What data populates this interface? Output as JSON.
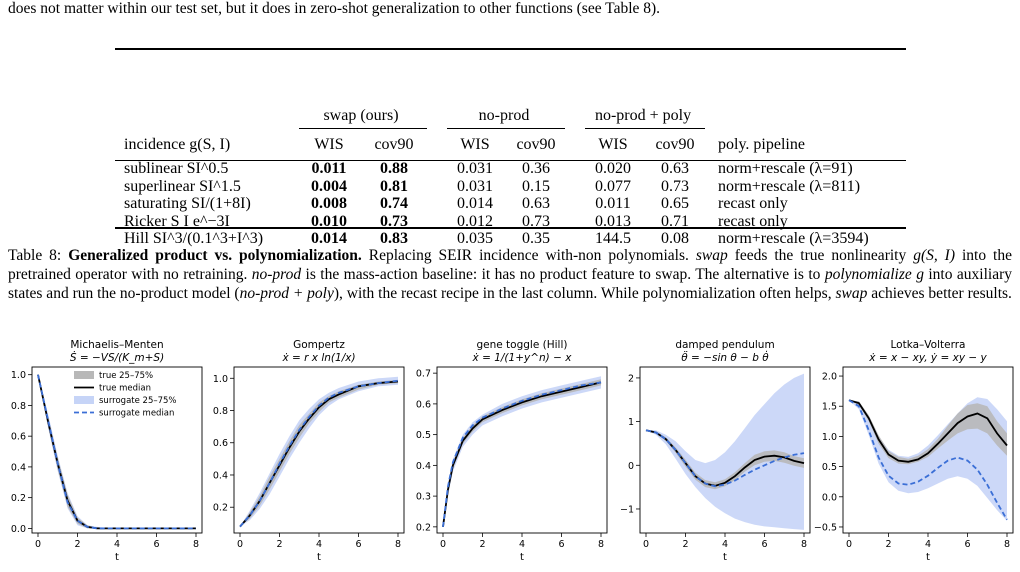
{
  "intro_text": "does not matter within our test set, but it does in zero-shot generalization to other functions (see Table 8).",
  "table": {
    "groups": [
      "swap (ours)",
      "no-prod",
      "no-prod + poly"
    ],
    "col_headers": [
      "incidence g(S, I)",
      "WIS",
      "cov90",
      "WIS",
      "cov90",
      "WIS",
      "cov90",
      "poly. pipeline"
    ],
    "rows": [
      {
        "label": "sublinear SI^0.5",
        "swap_wis": "0.011",
        "swap_cov": "0.88",
        "np_wis": "0.031",
        "np_cov": "0.36",
        "npp_wis": "0.020",
        "npp_cov": "0.63",
        "pipeline": "norm+rescale (λ=91)"
      },
      {
        "label": "superlinear SI^1.5",
        "swap_wis": "0.004",
        "swap_cov": "0.81",
        "np_wis": "0.031",
        "np_cov": "0.15",
        "npp_wis": "0.077",
        "npp_cov": "0.73",
        "pipeline": "norm+rescale (λ=811)"
      },
      {
        "label": "saturating SI/(1+8I)",
        "swap_wis": "0.008",
        "swap_cov": "0.74",
        "np_wis": "0.014",
        "np_cov": "0.63",
        "npp_wis": "0.011",
        "npp_cov": "0.65",
        "pipeline": "recast only"
      },
      {
        "label": "Ricker S I e^−3I",
        "swap_wis": "0.010",
        "swap_cov": "0.73",
        "np_wis": "0.012",
        "np_cov": "0.73",
        "npp_wis": "0.013",
        "npp_cov": "0.71",
        "pipeline": "recast only"
      },
      {
        "label": "Hill SI^3/(0.1^3+I^3)",
        "swap_wis": "0.014",
        "swap_cov": "0.83",
        "np_wis": "0.035",
        "np_cov": "0.35",
        "npp_wis": "144.5",
        "npp_cov": "0.08",
        "pipeline": "norm+rescale (λ=3594)"
      }
    ]
  },
  "caption": {
    "label": "Table 8:",
    "title": "Generalized product vs. polynomialization.",
    "s1": " Replacing SEIR incidence with-non polynomials. ",
    "swap": "swap",
    "s2": " feeds the true nonlinearity ",
    "g": "g(S, I)",
    "s3": " into the pretrained operator with no retraining. ",
    "noprod": "no-prod",
    "s4": " is the mass-action baseline: it has no product feature to swap. The alternative is to ",
    "polyize": "polynomialize g",
    "s5": " into auxiliary states and run the no-product model (",
    "noprodpoly": "no-prod + poly",
    "s6": "), with the recast recipe in the last column. While polynomialization often helps, ",
    "swap2": "swap",
    "s7": " achieves better results."
  },
  "legend": [
    "true 25–75%",
    "true median",
    "surrogate 25–75%",
    "surrogate median"
  ],
  "colors": {
    "true_band": "#b8b8b8",
    "true_median": "#000000",
    "surr_band": "#c6d4f7",
    "surr_median": "#3b6fd6"
  },
  "chart_data": [
    {
      "type": "line",
      "title": "Michaelis–Menten",
      "equation": "Ṡ = −VS/(K_m+S)",
      "xlabel": "t",
      "ylabel": "",
      "xlim": [
        0,
        8
      ],
      "ylim": [
        -0.03,
        1.05
      ],
      "xticks": [
        0,
        2,
        4,
        6,
        8
      ],
      "yticks": [
        0.0,
        0.2,
        0.4,
        0.6,
        0.8,
        1.0
      ],
      "ytick_labels": [
        "0.0",
        "0.2",
        "0.4",
        "0.6",
        "0.8",
        "1.0"
      ],
      "x": [
        0,
        0.5,
        1,
        1.5,
        2,
        2.5,
        3,
        4,
        5,
        6,
        7,
        8
      ],
      "series": [
        {
          "name": "true median",
          "values": [
            1.0,
            0.7,
            0.42,
            0.18,
            0.05,
            0.01,
            0.0,
            0.0,
            0.0,
            0.0,
            0.0,
            0.0
          ]
        },
        {
          "name": "surrogate median",
          "values": [
            1.0,
            0.71,
            0.42,
            0.17,
            0.05,
            0.01,
            0.0,
            0.0,
            0.0,
            0.0,
            0.0,
            0.0
          ]
        }
      ],
      "true_band": {
        "lo": [
          1.0,
          0.67,
          0.38,
          0.14,
          0.03,
          0.0,
          0.0,
          0.0,
          0.0,
          0.0,
          0.0,
          0.0
        ],
        "hi": [
          1.0,
          0.73,
          0.46,
          0.22,
          0.07,
          0.02,
          0.0,
          0.0,
          0.0,
          0.0,
          0.0,
          0.0
        ]
      },
      "surr_band": {
        "lo": [
          1.0,
          0.66,
          0.37,
          0.13,
          0.02,
          0.0,
          0.0,
          0.0,
          0.0,
          0.0,
          0.0,
          0.0
        ],
        "hi": [
          1.0,
          0.75,
          0.47,
          0.23,
          0.08,
          0.02,
          0.01,
          0.0,
          0.0,
          0.0,
          0.0,
          0.0
        ]
      },
      "legend": "upper right"
    },
    {
      "type": "line",
      "title": "Gompertz",
      "equation": "ẋ = r x ln(1/x)",
      "xlabel": "t",
      "ylabel": "",
      "xlim": [
        0,
        8
      ],
      "ylim": [
        0.04,
        1.07
      ],
      "xticks": [
        0,
        2,
        4,
        6,
        8
      ],
      "yticks": [
        0.2,
        0.4,
        0.6,
        0.8,
        1.0
      ],
      "ytick_labels": [
        "0.2",
        "0.4",
        "0.6",
        "0.8",
        "1.0"
      ],
      "x": [
        0,
        0.5,
        1,
        1.5,
        2,
        2.5,
        3,
        3.5,
        4,
        4.5,
        5,
        6,
        7,
        8
      ],
      "series": [
        {
          "name": "true median",
          "values": [
            0.08,
            0.15,
            0.24,
            0.35,
            0.46,
            0.57,
            0.67,
            0.75,
            0.82,
            0.87,
            0.9,
            0.95,
            0.97,
            0.98
          ]
        },
        {
          "name": "surrogate median",
          "values": [
            0.08,
            0.15,
            0.24,
            0.35,
            0.47,
            0.58,
            0.68,
            0.76,
            0.83,
            0.88,
            0.91,
            0.95,
            0.97,
            0.985
          ]
        }
      ],
      "true_band": {
        "lo": [
          0.08,
          0.13,
          0.21,
          0.31,
          0.42,
          0.53,
          0.63,
          0.72,
          0.79,
          0.85,
          0.88,
          0.93,
          0.96,
          0.97
        ],
        "hi": [
          0.08,
          0.17,
          0.27,
          0.39,
          0.5,
          0.61,
          0.71,
          0.78,
          0.85,
          0.89,
          0.92,
          0.96,
          0.98,
          0.99
        ]
      },
      "surr_band": {
        "lo": [
          0.08,
          0.12,
          0.19,
          0.28,
          0.39,
          0.5,
          0.6,
          0.69,
          0.77,
          0.83,
          0.87,
          0.92,
          0.95,
          0.96
        ],
        "hi": [
          0.08,
          0.18,
          0.29,
          0.41,
          0.53,
          0.64,
          0.74,
          0.81,
          0.87,
          0.91,
          0.94,
          0.98,
          1.0,
          1.01
        ]
      },
      "legend": "none"
    },
    {
      "type": "line",
      "title": "gene toggle (Hill)",
      "equation": "ẋ = 1/(1+y^n) − x",
      "xlabel": "t",
      "ylabel": "",
      "xlim": [
        0,
        8
      ],
      "ylim": [
        0.18,
        0.72
      ],
      "xticks": [
        0,
        2,
        4,
        6,
        8
      ],
      "yticks": [
        0.2,
        0.3,
        0.4,
        0.5,
        0.6,
        0.7
      ],
      "ytick_labels": [
        "0.2",
        "0.3",
        "0.4",
        "0.5",
        "0.6",
        "0.7"
      ],
      "x": [
        0,
        0.25,
        0.5,
        1,
        1.5,
        2,
        3,
        4,
        5,
        6,
        7,
        8
      ],
      "series": [
        {
          "name": "true median",
          "values": [
            0.2,
            0.32,
            0.4,
            0.48,
            0.52,
            0.55,
            0.58,
            0.605,
            0.625,
            0.64,
            0.655,
            0.67
          ]
        },
        {
          "name": "surrogate median",
          "values": [
            0.2,
            0.33,
            0.41,
            0.49,
            0.53,
            0.555,
            0.585,
            0.61,
            0.63,
            0.645,
            0.66,
            0.67
          ]
        }
      ],
      "true_band": {
        "lo": [
          0.2,
          0.31,
          0.39,
          0.47,
          0.51,
          0.54,
          0.57,
          0.595,
          0.615,
          0.63,
          0.645,
          0.66
        ],
        "hi": [
          0.2,
          0.33,
          0.41,
          0.49,
          0.53,
          0.56,
          0.59,
          0.615,
          0.635,
          0.65,
          0.665,
          0.68
        ]
      },
      "surr_band": {
        "lo": [
          0.2,
          0.3,
          0.38,
          0.46,
          0.5,
          0.53,
          0.56,
          0.585,
          0.605,
          0.62,
          0.635,
          0.65
        ],
        "hi": [
          0.2,
          0.34,
          0.42,
          0.5,
          0.54,
          0.565,
          0.6,
          0.625,
          0.645,
          0.66,
          0.675,
          0.69
        ]
      },
      "legend": "none"
    },
    {
      "type": "line",
      "title": "damped pendulum",
      "equation": "θ̈ = −sin θ − b θ̇",
      "xlabel": "t",
      "ylabel": "",
      "xlim": [
        0,
        8
      ],
      "ylim": [
        -1.55,
        2.25
      ],
      "xticks": [
        0,
        2,
        4,
        6,
        8
      ],
      "yticks": [
        -1,
        0,
        1,
        2
      ],
      "ytick_labels": [
        "−1",
        "0",
        "1",
        "2"
      ],
      "x": [
        0,
        0.5,
        1,
        1.5,
        2,
        2.5,
        3,
        3.5,
        4,
        4.5,
        5,
        5.5,
        6,
        6.5,
        7,
        7.5,
        8
      ],
      "series": [
        {
          "name": "true median",
          "values": [
            0.8,
            0.75,
            0.6,
            0.35,
            0.05,
            -0.25,
            -0.42,
            -0.47,
            -0.4,
            -0.25,
            -0.05,
            0.12,
            0.2,
            0.22,
            0.18,
            0.1,
            0.05
          ]
        },
        {
          "name": "surrogate median",
          "values": [
            0.8,
            0.75,
            0.6,
            0.35,
            0.05,
            -0.25,
            -0.42,
            -0.48,
            -0.44,
            -0.35,
            -0.22,
            -0.1,
            0.0,
            0.1,
            0.18,
            0.24,
            0.28
          ]
        }
      ],
      "true_band": {
        "lo": [
          0.8,
          0.73,
          0.56,
          0.29,
          -0.03,
          -0.33,
          -0.5,
          -0.55,
          -0.48,
          -0.34,
          -0.15,
          0.0,
          0.08,
          0.1,
          0.06,
          -0.01,
          -0.06
        ],
        "hi": [
          0.8,
          0.77,
          0.64,
          0.41,
          0.13,
          -0.17,
          -0.34,
          -0.39,
          -0.32,
          -0.16,
          0.05,
          0.24,
          0.32,
          0.34,
          0.3,
          0.21,
          0.16
        ]
      },
      "surr_band": {
        "lo": [
          0.8,
          0.7,
          0.48,
          0.15,
          -0.2,
          -0.5,
          -0.75,
          -0.95,
          -1.1,
          -1.22,
          -1.3,
          -1.36,
          -1.4,
          -1.42,
          -1.44,
          -1.46,
          -1.48
        ],
        "hi": [
          0.8,
          0.8,
          0.7,
          0.55,
          0.32,
          0.12,
          0.05,
          0.12,
          0.3,
          0.55,
          0.85,
          1.15,
          1.4,
          1.65,
          1.85,
          2.0,
          2.1
        ]
      },
      "legend": "none"
    },
    {
      "type": "line",
      "title": "Lotka–Volterra",
      "equation": "ẋ = x − xy,  ẏ = xy − y",
      "xlabel": "t",
      "ylabel": "",
      "xlim": [
        0,
        8
      ],
      "ylim": [
        -0.6,
        2.15
      ],
      "xticks": [
        0,
        2,
        4,
        6,
        8
      ],
      "yticks": [
        -0.5,
        0.0,
        0.5,
        1.0,
        1.5,
        2.0
      ],
      "ytick_labels": [
        "−0.5",
        "0.0",
        "0.5",
        "1.0",
        "1.5",
        "2.0"
      ],
      "x": [
        0,
        0.5,
        1,
        1.5,
        2,
        2.5,
        3,
        3.5,
        4,
        4.5,
        5,
        5.5,
        6,
        6.5,
        7,
        7.5,
        8
      ],
      "series": [
        {
          "name": "true median",
          "values": [
            1.6,
            1.55,
            1.3,
            0.95,
            0.7,
            0.6,
            0.58,
            0.62,
            0.72,
            0.88,
            1.05,
            1.22,
            1.33,
            1.38,
            1.3,
            1.05,
            0.85
          ]
        },
        {
          "name": "surrogate median",
          "values": [
            1.6,
            1.5,
            1.1,
            0.65,
            0.35,
            0.22,
            0.2,
            0.25,
            0.35,
            0.48,
            0.6,
            0.65,
            0.6,
            0.45,
            0.2,
            -0.1,
            -0.38
          ]
        }
      ],
      "true_band": {
        "lo": [
          1.6,
          1.52,
          1.25,
          0.88,
          0.64,
          0.55,
          0.54,
          0.58,
          0.66,
          0.8,
          0.93,
          1.05,
          1.12,
          1.13,
          1.05,
          0.85,
          0.68
        ],
        "hi": [
          1.6,
          1.58,
          1.35,
          1.02,
          0.76,
          0.66,
          0.63,
          0.68,
          0.79,
          0.96,
          1.18,
          1.38,
          1.52,
          1.55,
          1.5,
          1.25,
          1.05
        ]
      },
      "surr_band": {
        "lo": [
          1.6,
          1.45,
          1.02,
          0.55,
          0.24,
          0.1,
          0.06,
          0.08,
          0.14,
          0.22,
          0.3,
          0.34,
          0.3,
          0.18,
          -0.02,
          -0.22,
          -0.4
        ],
        "hi": [
          1.6,
          1.58,
          1.32,
          1.0,
          0.78,
          0.68,
          0.66,
          0.72,
          0.85,
          1.02,
          1.2,
          1.38,
          1.55,
          1.65,
          1.62,
          1.45,
          1.25
        ]
      },
      "legend": "none"
    }
  ]
}
